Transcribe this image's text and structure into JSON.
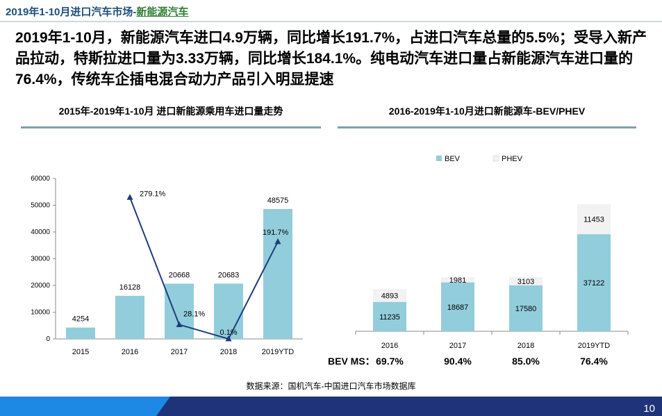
{
  "header": {
    "title_prefix": "2019年1-10月进口汽车市场-",
    "title_accent": "新能源汽车"
  },
  "headline": "2019年1-10月，新能源汽车进口4.9万辆，同比增长191.7%，占进口汽车总量的5.5%；受导入新产品拉动，特斯拉进口量为3.33万辆，同比增长184.1%。纯电动汽车进口量占新能源汽车进口量的76.4%，传统车企插电混合动力产品引入明显提速",
  "chart_data": [
    {
      "type": "bar",
      "title": "2015年-2019年1-10月 进口新能源乘用车进口量走势",
      "categories": [
        "2015",
        "2016",
        "2017",
        "2018",
        "2019YTD"
      ],
      "values": [
        4254,
        16128,
        20668,
        20683,
        48575
      ],
      "value_labels": [
        "4254",
        "16128",
        "20668",
        "20683",
        "48575"
      ],
      "yticks": [
        "0",
        "10000",
        "20000",
        "30000",
        "40000",
        "50000",
        "60000"
      ],
      "ylim": [
        0,
        60000
      ],
      "growth_line": {
        "categories": [
          "2016",
          "2017",
          "2018",
          "2019YTD"
        ],
        "values": [
          279.1,
          28.1,
          0.1,
          191.7
        ],
        "labels": [
          "279.1%",
          "28.1%",
          "0.1%",
          "191.7%"
        ]
      },
      "colors": {
        "bar": "#92cddc",
        "line": "#1f3d7a"
      }
    },
    {
      "type": "bar",
      "stacked": true,
      "title": "2016-2019年1-10月进口新能源车-BEV/PHEV",
      "categories": [
        "2016",
        "2017",
        "2018",
        "2019YTD"
      ],
      "legend": [
        "BEV",
        "PHEV"
      ],
      "legend_position": "top",
      "series": [
        {
          "name": "BEV",
          "values": [
            11235,
            18687,
            17580,
            37122
          ]
        },
        {
          "name": "PHEV",
          "values": [
            4893,
            1981,
            3103,
            11453
          ]
        }
      ],
      "ylim": [
        0,
        50000
      ],
      "share_label": "BEV MS：",
      "shares": [
        "69.7%",
        "90.4%",
        "85.0%",
        "76.4%"
      ],
      "colors": {
        "BEV": "#92cddc",
        "PHEV": "#f2f2f2"
      }
    }
  ],
  "source": "数据来源：国机汽车-中国进口汽车市场数据库",
  "page_number": "10",
  "colors": {
    "navy": "#1f3478",
    "blue": "#1e88e5",
    "title": "#1f4e79",
    "accent": "#2e7d32"
  }
}
